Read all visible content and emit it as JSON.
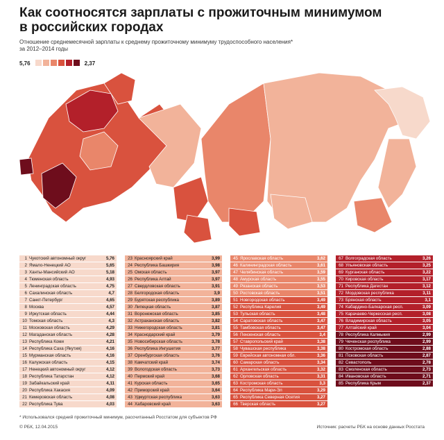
{
  "title_line1": "Как соотносятся зарплаты с прожиточным минимумом",
  "title_line2": "в российских городах",
  "subtitle_line1": "Отношение среднемесячной зарплаты к среднему прожиточному минимуму трудоспособного населения*",
  "subtitle_line2": "за 2012–2014 годы",
  "legend": {
    "high_label": "5,76",
    "low_label": "2,37",
    "colors": [
      "#f7d9cb",
      "#f2b39a",
      "#e9866a",
      "#d9523e",
      "#b3202a",
      "#6e0d1c"
    ]
  },
  "footnote": "* Использовался средний прожиточный минимум, рассчитанный Росстатом для субъектов РФ",
  "credit": "© РБК, 12.04.2015",
  "source": "Источник: расчеты РБК на основе данных Росстата",
  "chart_data": {
    "type": "table",
    "title": "Как соотносятся зарплаты с прожиточным минимумом в российских городах",
    "columns": [
      {
        "ranks": [
          1,
          2,
          3,
          4,
          5,
          6,
          7,
          8,
          9,
          10,
          11,
          12,
          13,
          14,
          15,
          16,
          17,
          18,
          19,
          20,
          21,
          22
        ],
        "names": [
          "Чукотский автономный округ",
          "Ямало-Ненецкий АО",
          "Ханты-Мансийский АО",
          "Тюменская область",
          "Ленинградская область",
          "Сахалинская область",
          "Санкт-Петербург",
          "Москва",
          "Иркутская область",
          "Томская область",
          "Московская область",
          "Магаданская область",
          "Республика Коми",
          "Республика Саха (Якутия)",
          "Мурманская область",
          "Калужская область",
          "Ненецкий автономный округ",
          "Республика Татарстан",
          "Забайкальский край",
          "Республика Хакасия",
          "Кемеровская область",
          "Республика Тува"
        ],
        "values": [
          "5,76",
          "5,65",
          "5,18",
          "4,93",
          "4,75",
          "4,7",
          "4,65",
          "4,57",
          "4,44",
          "4,3",
          "4,29",
          "4,28",
          "4,21",
          "4,16",
          "4,16",
          "4,15",
          "4,12",
          "4,12",
          "4,11",
          "4,09",
          "4,08",
          "4,03"
        ]
      },
      {
        "ranks": [
          23,
          24,
          25,
          26,
          27,
          28,
          29,
          30,
          31,
          32,
          33,
          34,
          35,
          36,
          37,
          38,
          39,
          40,
          41,
          42,
          43,
          44
        ],
        "names": [
          "Красноярский край",
          "Республика Башкирия",
          "Омская область",
          "Республика Алтай",
          "Свердловская область",
          "Белгородская область",
          "Бурятская республика",
          "Липецкая область",
          "Воронежская область",
          "Астраханская область",
          "Нижегородская область",
          "Краснодарский край",
          "Новосибирская область",
          "Республика Ингушетия",
          "Оренбургская область",
          "Камчатский край",
          "Вологодская область",
          "Пермский край",
          "Курская область",
          "Приморский край",
          "Удмуртская республика",
          "Хабаровский край"
        ],
        "values": [
          "3,99",
          "3,98",
          "3,97",
          "3,97",
          "3,91",
          "3,9",
          "3,89",
          "3,87",
          "3,85",
          "3,82",
          "3,81",
          "3,79",
          "3,78",
          "3,77",
          "3,76",
          "3,74",
          "3,73",
          "3,68",
          "3,65",
          "3,64",
          "3,63",
          "3,63"
        ]
      },
      {
        "ranks": [
          45,
          46,
          47,
          48,
          49,
          50,
          51,
          52,
          53,
          54,
          55,
          56,
          57,
          58,
          59,
          60,
          61,
          62,
          63,
          64,
          65,
          66
        ],
        "names": [
          "Ярославская область",
          "Калининградская область",
          "Челябинская область",
          "Амурская область",
          "Рязанская область",
          "Ростовская область",
          "Новгородская область",
          "Республика Карелия",
          "Тульская область",
          "Саратовская область",
          "Тамбовская область",
          "Пензенская область",
          "Ставропольский край",
          "Чувашская республика",
          "Еврейская автономная обл.",
          "Самарская область",
          "Архангельская область",
          "Орловская область",
          "Костромская область",
          "Республика Мари-Эл",
          "Республика Северная Осетия",
          "Тверская область"
        ],
        "values": [
          "3,62",
          "3,61",
          "3,59",
          "3,55",
          "3,53",
          "3,51",
          "3,49",
          "3,49",
          "3,48",
          "3,47",
          "3,47",
          "3,4",
          "3,38",
          "3,38",
          "3,36",
          "3,34",
          "3,32",
          "3,31",
          "3,3",
          "3,29",
          "3,27",
          "3,27"
        ]
      },
      {
        "ranks": [
          67,
          68,
          69,
          70,
          71,
          72,
          73,
          74,
          75,
          76,
          77,
          78,
          79,
          80,
          81,
          82,
          83,
          84,
          85
        ],
        "names": [
          "Волгоградская область",
          "Ульяновская область",
          "Курганская область",
          "Кировская область",
          "Республика Дагестан",
          "Мордовская республика",
          "Брянская область",
          "Кабардино-Балкарская респ.",
          "Карачаево-Черкесская респ.",
          "Владимирская область",
          "Алтайский край",
          "Республика Калмыкия",
          "Чеченская республика",
          "Костромская область",
          "Псковская область",
          "Севастополь",
          "Смоленская область",
          "Ивановская область",
          "Республика Крым"
        ],
        "values": [
          "3,26",
          "3,25",
          "3,22",
          "3,17",
          "3,12",
          "3,11",
          "3,1",
          "3,09",
          "3,08",
          "3,05",
          "3,04",
          "2,99",
          "2,99",
          "2,88",
          "2,87",
          "2,78",
          "2,73",
          "2,71",
          "2,37"
        ]
      }
    ]
  }
}
